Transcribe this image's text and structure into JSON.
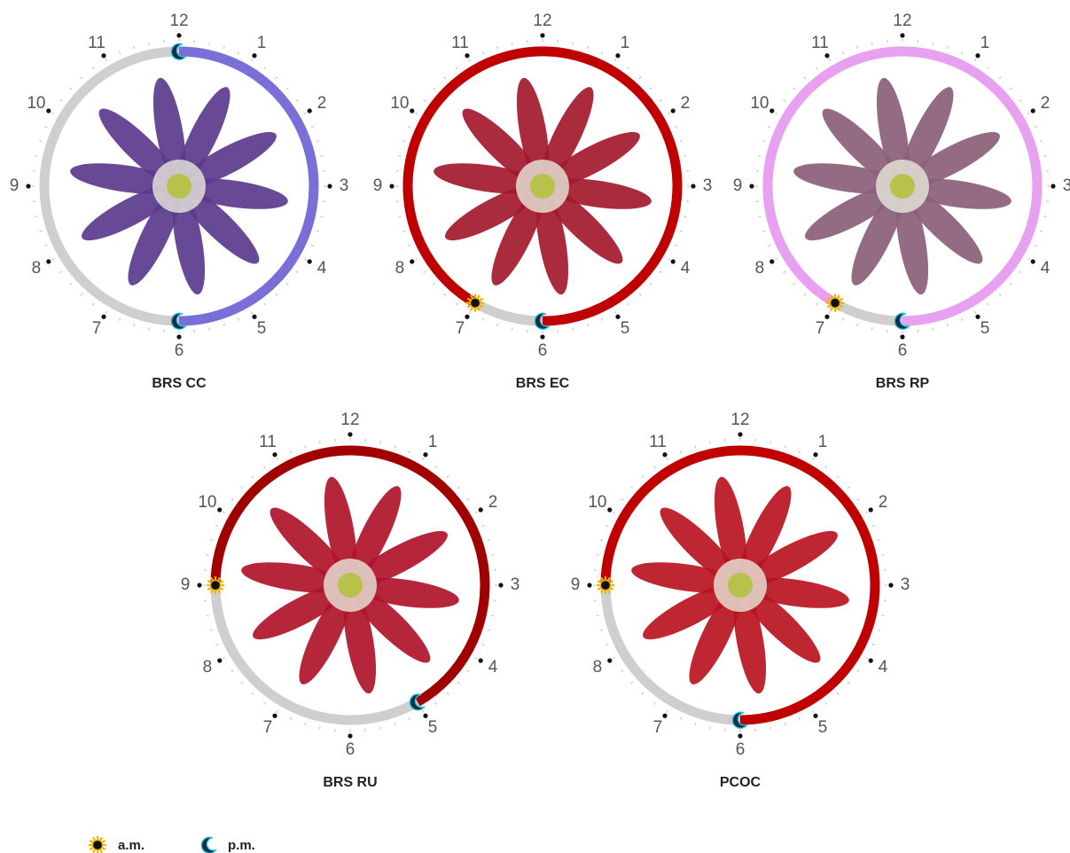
{
  "hours": [
    "12",
    "1",
    "2",
    "3",
    "4",
    "5",
    "6",
    "7",
    "8",
    "9",
    "10",
    "11"
  ],
  "clocks": [
    {
      "label": "BRS CC",
      "opens": 12,
      "closes": 18,
      "color": "#7a6fd9",
      "flower_color": "#5b3a8c"
    },
    {
      "label": "BRS EC",
      "opens": 7,
      "closes": 18,
      "color": "#c00000",
      "flower_color": "#a3182e"
    },
    {
      "label": "BRS RP",
      "opens": 7,
      "closes": 18,
      "color": "#e8a0f0",
      "flower_color": "#8a607a"
    },
    {
      "label": "BRS RU",
      "opens": 9,
      "closes": 17,
      "color": "#a10000",
      "flower_color": "#b0142a"
    },
    {
      "label": "PCOC",
      "opens": 9,
      "closes": 18,
      "color": "#c00000",
      "flower_color": "#b81420"
    }
  ],
  "legend": {
    "am": "a.m.",
    "pm": "p.m."
  }
}
